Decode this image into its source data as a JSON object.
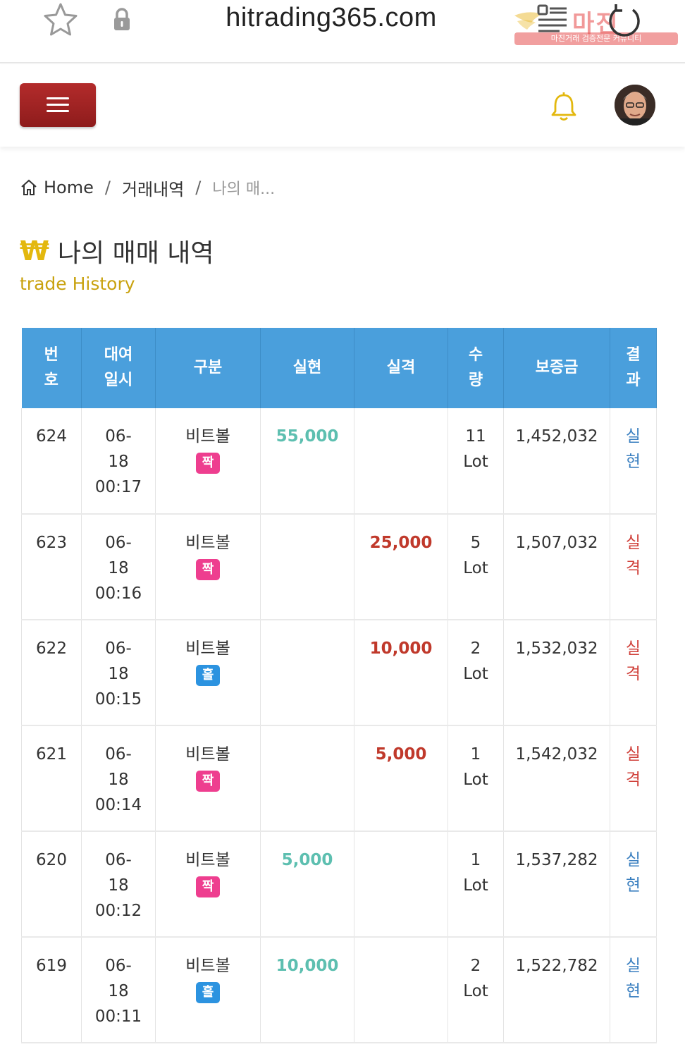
{
  "browser": {
    "url": "hitrading365.com",
    "watermark_text": "마진",
    "watermark_sub": "마진거래 검증전문 커뮤니티"
  },
  "breadcrumb": {
    "home": "Home",
    "separator": "/",
    "level2": "거래내역",
    "current": "나의 매..."
  },
  "page": {
    "title_symbol": "₩",
    "title": "나의 매매 내역",
    "subtitle": "trade History"
  },
  "table": {
    "headers": [
      "번\n호",
      "대여\n일시",
      "구분",
      "실현",
      "실격",
      "수\n량",
      "보증금",
      "결\n과"
    ],
    "rows": [
      {
        "no": "624",
        "date": "06-\n18\n00:17",
        "type": "비트볼",
        "badge": "짝",
        "badge_kind": "even",
        "realized": "55,000",
        "lost": "",
        "qty": "11\nLot",
        "deposit": "1,452,032",
        "result": "실\n현",
        "result_kind": "win"
      },
      {
        "no": "623",
        "date": "06-\n18\n00:16",
        "type": "비트볼",
        "badge": "짝",
        "badge_kind": "even",
        "realized": "",
        "lost": "25,000",
        "qty": "5\nLot",
        "deposit": "1,507,032",
        "result": "실\n격",
        "result_kind": "lose"
      },
      {
        "no": "622",
        "date": "06-\n18\n00:15",
        "type": "비트볼",
        "badge": "홀",
        "badge_kind": "odd",
        "realized": "",
        "lost": "10,000",
        "qty": "2\nLot",
        "deposit": "1,532,032",
        "result": "실\n격",
        "result_kind": "lose"
      },
      {
        "no": "621",
        "date": "06-\n18\n00:14",
        "type": "비트볼",
        "badge": "짝",
        "badge_kind": "even",
        "realized": "",
        "lost": "5,000",
        "qty": "1\nLot",
        "deposit": "1,542,032",
        "result": "실\n격",
        "result_kind": "lose"
      },
      {
        "no": "620",
        "date": "06-\n18\n00:12",
        "type": "비트볼",
        "badge": "짝",
        "badge_kind": "even",
        "realized": "5,000",
        "lost": "",
        "qty": "1\nLot",
        "deposit": "1,537,282",
        "result": "실\n현",
        "result_kind": "win"
      },
      {
        "no": "619",
        "date": "06-\n18\n00:11",
        "type": "비트볼",
        "badge": "홀",
        "badge_kind": "odd",
        "realized": "10,000",
        "lost": "",
        "qty": "2\nLot",
        "deposit": "1,522,782",
        "result": "실\n현",
        "result_kind": "win"
      }
    ]
  },
  "icons": {
    "favorite": "star-icon",
    "secure": "lock-icon",
    "refresh": "reload-icon",
    "menu": "hamburger-icon",
    "notifications": "bell-icon",
    "home": "home-icon"
  },
  "colors": {
    "menu_button": "#a32424",
    "table_header": "#4a9fdc",
    "realized": "#5dbfb0",
    "lost": "#c0392b",
    "badge_even": "#ee3e8f",
    "badge_odd": "#2c93e0",
    "title_accent": "#e3b80e"
  }
}
